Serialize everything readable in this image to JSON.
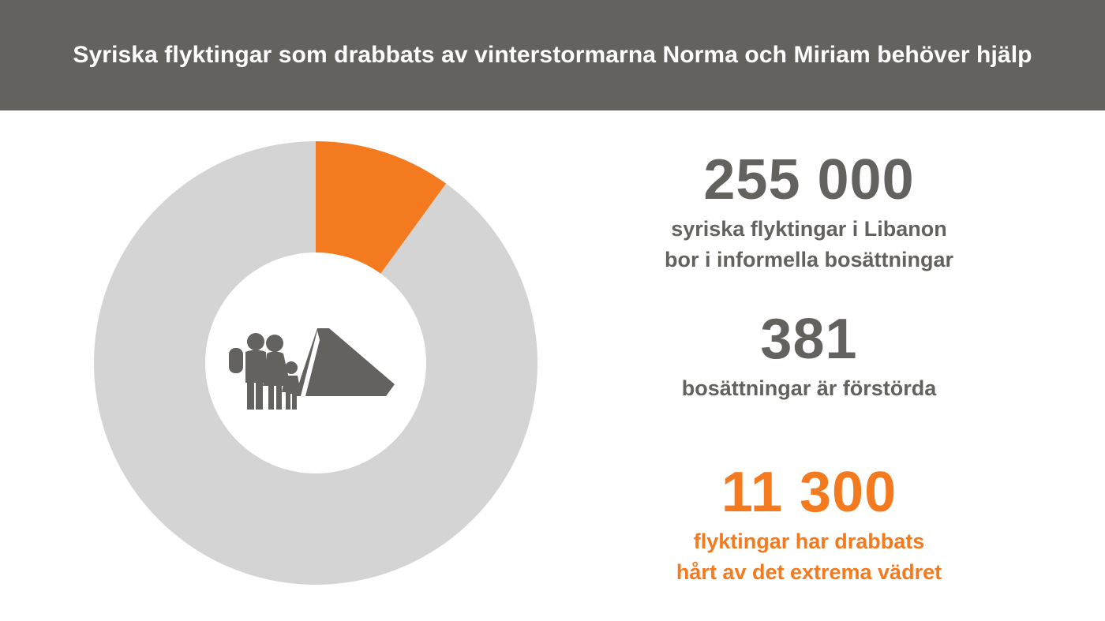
{
  "header": {
    "title": "Syriska flyktingar som drabbats av vinterstormarna Norma och Miriam behöver hjälp"
  },
  "colors": {
    "header_bg": "#63625e",
    "accent": "#f47a1f",
    "donut_bg": "#d4d4d4",
    "text_gray": "#63625e"
  },
  "chart_data": {
    "type": "pie",
    "variant": "donut",
    "categories": [
      "",
      ""
    ],
    "values": [
      10,
      90
    ],
    "colors": [
      "#f47a1f",
      "#d4d4d4"
    ],
    "center_icon": "refugee-family-tent-icon"
  },
  "stats": [
    {
      "value": "255 000",
      "line1": "syriska flyktingar i Libanon",
      "line2": "bor i informella bosättningar",
      "color": "#63625e"
    },
    {
      "value": "381",
      "line1": "bosättningar är förstörda",
      "line2": "",
      "color": "#63625e"
    },
    {
      "value": "11 300",
      "line1": "flyktingar har drabbats",
      "line2": "hårt av det extrema vädret",
      "color": "#f47a1f"
    }
  ]
}
